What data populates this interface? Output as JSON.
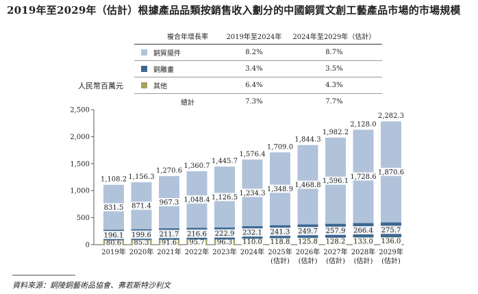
{
  "title": "2019年至2029年（估計）根據產品品類按銷售收入劃分的中國銅質文創工藝產品市場的市場規模",
  "unit_label": "人民幣百萬元",
  "source": "資料來源：銅陵銅藝術品協會、弗若斯特沙利文",
  "table": {
    "headers": [
      "複合年增長率",
      "2019年至2024年",
      "2024年至2029年（估計）"
    ],
    "rows": [
      {
        "name": "銅質擺件",
        "color": "#b0c3da",
        "cagr1": "8.2%",
        "cagr2": "8.7%"
      },
      {
        "name": "銅雕畫",
        "color": "#3c6790",
        "cagr1": "3.4%",
        "cagr2": "3.5%"
      },
      {
        "name": "其他",
        "color": "#a7a05e",
        "cagr1": "6.4%",
        "cagr2": "4.3%"
      },
      {
        "name": "總計",
        "color": "",
        "cagr1": "7.3%",
        "cagr2": "7.7%"
      }
    ]
  },
  "chart_data": {
    "type": "bar",
    "stacked": true,
    "categories": [
      "2019年",
      "2020年",
      "2021年",
      "2022年",
      "2023年",
      "2024年",
      "2025年",
      "2026年",
      "2027年",
      "2028年",
      "2029年"
    ],
    "category_sublabels": [
      "",
      "",
      "",
      "",
      "",
      "",
      "(估計)",
      "(估計)",
      "(估計)",
      "(估計)",
      "(估計)"
    ],
    "series": [
      {
        "name": "其他",
        "color": "#a7a05e",
        "labels": [
          "80.6",
          "85.3",
          "91.6",
          "95.7",
          "96.3",
          "110.0",
          "118.8",
          "125.8",
          "128.2",
          "133.0",
          "136.0"
        ],
        "values": [
          80.6,
          85.3,
          91.6,
          95.7,
          96.3,
          110.0,
          118.8,
          125.8,
          128.2,
          133.0,
          136.0
        ]
      },
      {
        "name": "銅雕畫",
        "color": "#3c6790",
        "labels": [
          "196.1",
          "199.6",
          "211.7",
          "216.6",
          "222.9",
          "232.1",
          "241.3",
          "249.7",
          "257.9",
          "266.4",
          "275.7"
        ],
        "values": [
          196.1,
          199.6,
          211.7,
          216.6,
          222.9,
          232.1,
          241.3,
          249.7,
          257.9,
          266.4,
          275.7
        ]
      },
      {
        "name": "銅質擺件",
        "color": "#b0c3da",
        "labels": [
          "831.5",
          "871.4",
          "967.3",
          "1,048.4",
          "1,126.5",
          "1,234.3",
          "1,348.9",
          "1,468.8",
          "1,596.1",
          "1,728.6",
          "1,870.6"
        ],
        "values": [
          831.5,
          871.4,
          967.3,
          1048.4,
          1126.5,
          1234.3,
          1348.9,
          1468.8,
          1596.1,
          1728.6,
          1870.6
        ]
      }
    ],
    "totals": [
      "1,108.2",
      "1,156.3",
      "1,270.6",
      "1,360.7",
      "1,445.7",
      "1,576.4",
      "1,709.0",
      "1,844.3",
      "1,982.2",
      "2,128.0",
      "2,282.3"
    ],
    "total_values": [
      1108.2,
      1156.3,
      1270.6,
      1360.7,
      1445.7,
      1576.4,
      1709.0,
      1844.3,
      1982.2,
      2128.0,
      2282.3
    ],
    "yticks": [
      "0",
      "500",
      "1,000",
      "1,500",
      "2,000",
      "2,500"
    ],
    "ytick_values": [
      0,
      500,
      1000,
      1500,
      2000,
      2500
    ],
    "ylim": [
      0,
      2500
    ],
    "grid": false,
    "legend": "top"
  }
}
